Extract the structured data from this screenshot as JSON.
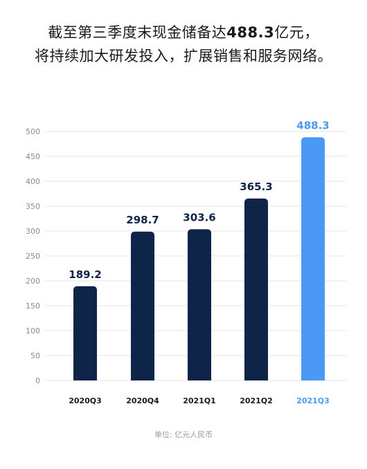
{
  "headline": {
    "line1_prefix": "截至第三季度末现金储备达",
    "line1_highlight": "488.3",
    "line1_suffix": "亿元，",
    "line2": "将持续加大研发投入，扩展销售和服务网络。"
  },
  "unit_note": "单位: 亿元人民币",
  "colors": {
    "bar_default": "#0f2449",
    "bar_highlight": "#4a9af5",
    "grid": "#e6e6e6",
    "axis_text": "#8c8c8c"
  },
  "chart_data": {
    "type": "bar",
    "categories": [
      "2020Q3",
      "2020Q4",
      "2021Q1",
      "2021Q2",
      "2021Q3"
    ],
    "values": [
      189.2,
      298.7,
      303.6,
      365.3,
      488.3
    ],
    "highlight_index": 4,
    "ylim": [
      0,
      500
    ],
    "yticks": [
      0,
      50,
      100,
      150,
      200,
      250,
      300,
      350,
      400,
      450,
      500
    ],
    "grid": true,
    "title": "",
    "xlabel": "",
    "ylabel": ""
  }
}
